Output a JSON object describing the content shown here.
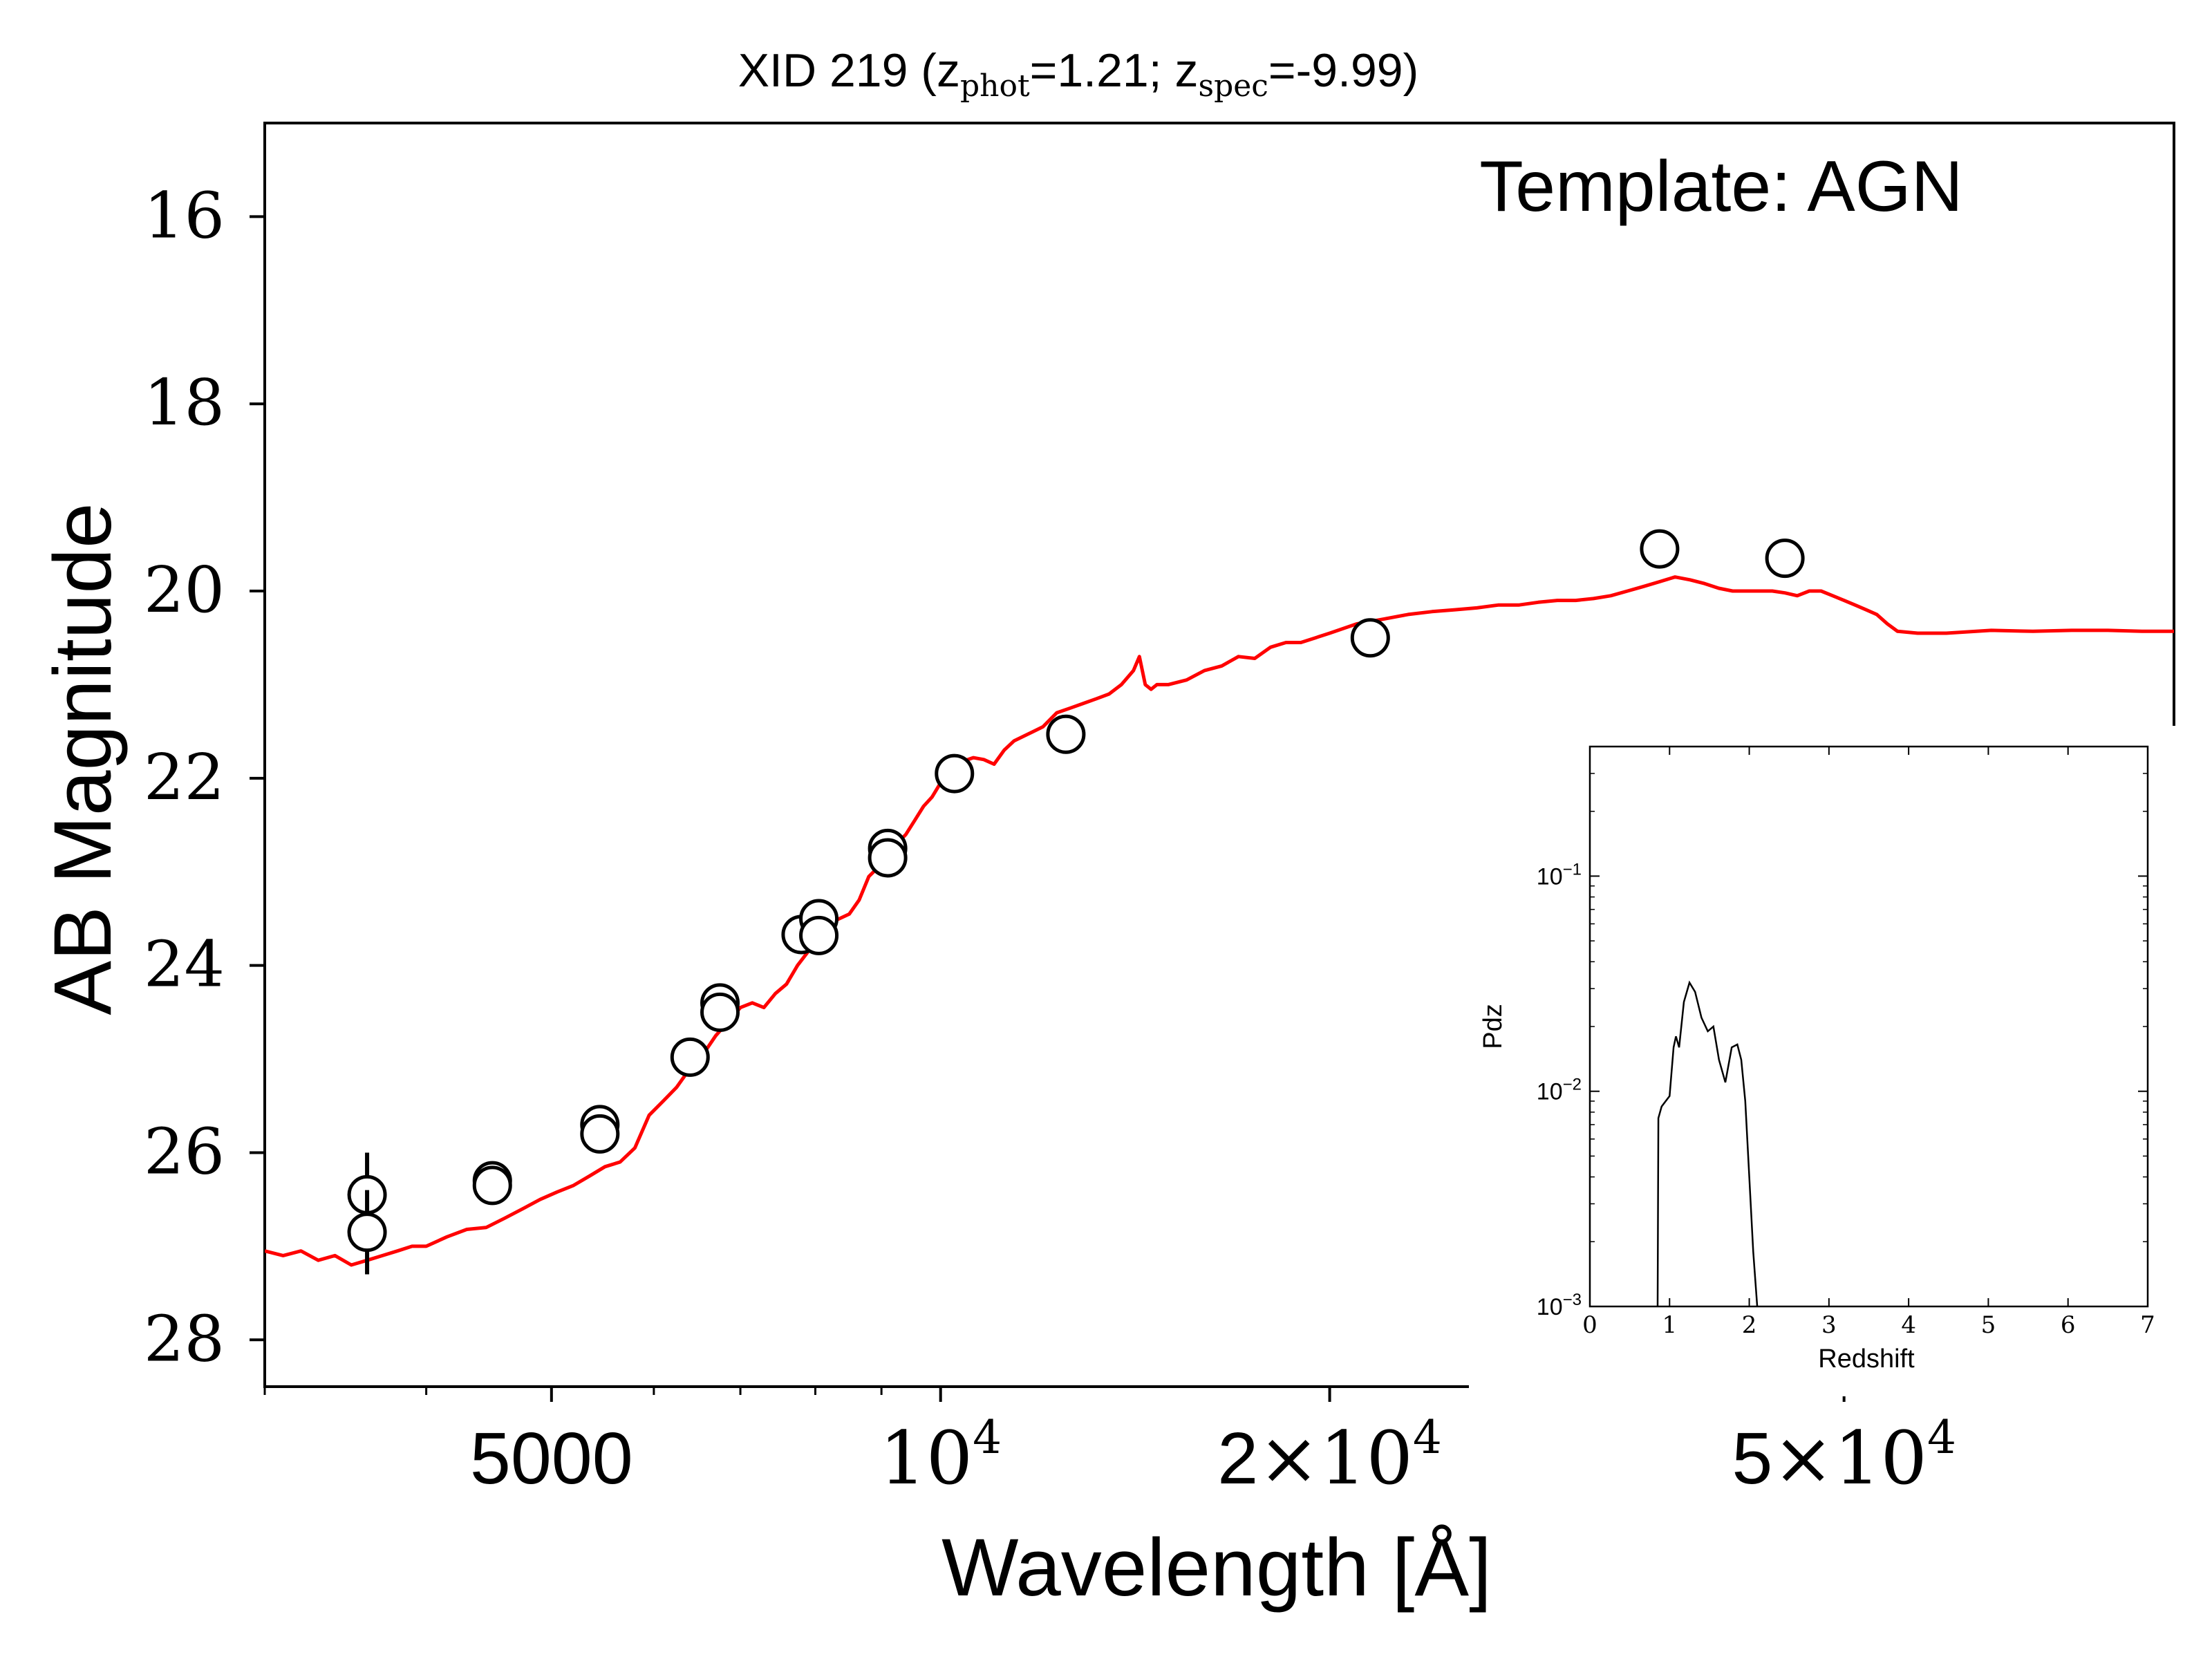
{
  "chart_data": {
    "type": "scatter",
    "title": {
      "prefix": "XID 219 (z",
      "sub1": "phot",
      "mid": "=1.21; z",
      "sub2": "spec",
      "suffix": "=-9.99)"
    },
    "annotation": "Template: AGN",
    "xlabel": "Wavelength [Å]",
    "ylabel": "AB Magnitude",
    "x_scale": "log",
    "xlim": [
      3000,
      90000
    ],
    "ylim": [
      28.5,
      15
    ],
    "y_inverted": true,
    "yticks": [
      16,
      18,
      20,
      22,
      24,
      26,
      28
    ],
    "xticks": [
      {
        "value": 5000,
        "label": "5000"
      },
      {
        "value": 10000,
        "base": "10",
        "exp": "4"
      },
      {
        "value": 20000,
        "coef": "2",
        "times": "×",
        "base": "10",
        "exp": "4"
      },
      {
        "value": 50000,
        "coef": "5",
        "times": "×",
        "base": "10",
        "exp": "4"
      }
    ],
    "series": [
      {
        "kind": "photometry",
        "marker": "open-circle",
        "color": "#000000",
        "points": [
          {
            "x": 3600,
            "y": 26.45,
            "yerr": 0.45
          },
          {
            "x": 3600,
            "y": 26.85,
            "yerr": 0.45
          },
          {
            "x": 4500,
            "y": 26.3,
            "yerr": 0.2
          },
          {
            "x": 4500,
            "y": 26.35,
            "yerr": 0.1
          },
          {
            "x": 5450,
            "y": 25.7,
            "yerr": 0.05
          },
          {
            "x": 5450,
            "y": 25.8,
            "yerr": 0.05
          },
          {
            "x": 6400,
            "y": 24.98,
            "yerr": 0.05
          },
          {
            "x": 6750,
            "y": 24.4,
            "yerr": 0.05
          },
          {
            "x": 6750,
            "y": 24.5,
            "yerr": 0.05
          },
          {
            "x": 7800,
            "y": 23.67,
            "yerr": 0.05
          },
          {
            "x": 8050,
            "y": 23.5,
            "yerr": 0.05
          },
          {
            "x": 8050,
            "y": 23.68,
            "yerr": 0.05
          },
          {
            "x": 9100,
            "y": 22.75,
            "yerr": 0.05
          },
          {
            "x": 9100,
            "y": 22.85,
            "yerr": 0.05
          },
          {
            "x": 10250,
            "y": 21.95,
            "yerr": 0.05
          },
          {
            "x": 12500,
            "y": 21.53,
            "yerr": 0.05
          },
          {
            "x": 21500,
            "y": 20.5,
            "yerr": 0.03
          },
          {
            "x": 36000,
            "y": 19.55,
            "yerr": 0.03
          },
          {
            "x": 45000,
            "y": 19.65,
            "yerr": 0.03
          }
        ]
      },
      {
        "kind": "template",
        "color": "#ff0000",
        "x": [
          3000,
          3100,
          3200,
          3300,
          3400,
          3500,
          3600,
          3700,
          3800,
          3900,
          4000,
          4150,
          4300,
          4450,
          4600,
          4750,
          4900,
          5050,
          5200,
          5350,
          5500,
          5650,
          5800,
          5950,
          6100,
          6250,
          6400,
          6550,
          6700,
          6850,
          7000,
          7150,
          7300,
          7450,
          7600,
          7750,
          7900,
          8050,
          8200,
          8350,
          8500,
          8650,
          8800,
          8950,
          9100,
          9250,
          9400,
          9550,
          9700,
          9850,
          10000,
          10200,
          10400,
          10600,
          10800,
          11000,
          11200,
          11400,
          11600,
          11800,
          12000,
          12300,
          12600,
          12900,
          13200,
          13500,
          13800,
          14100,
          14250,
          14400,
          14550,
          14700,
          15000,
          15500,
          16000,
          16500,
          17000,
          17500,
          18000,
          18500,
          19000,
          19500,
          20000,
          21000,
          22000,
          23000,
          24000,
          25000,
          26000,
          27000,
          28000,
          29000,
          30000,
          31000,
          32000,
          33000,
          34000,
          35000,
          36000,
          37000,
          38000,
          39000,
          40000,
          41000,
          42000,
          43000,
          44000,
          45000,
          46000,
          47000,
          48000,
          49000,
          50000,
          51000,
          52000,
          53000,
          54000,
          55000,
          57000,
          60000,
          65000,
          70000,
          75000,
          80000,
          85000,
          90000
        ],
        "y": [
          27.05,
          27.1,
          27.05,
          27.15,
          27.1,
          27.2,
          27.15,
          27.1,
          27.05,
          27.0,
          27.0,
          26.9,
          26.82,
          26.8,
          26.7,
          26.6,
          26.5,
          26.42,
          26.35,
          26.25,
          26.15,
          26.1,
          25.95,
          25.6,
          25.45,
          25.3,
          25.1,
          24.95,
          24.75,
          24.6,
          24.45,
          24.4,
          24.45,
          24.3,
          24.2,
          24.0,
          23.85,
          23.7,
          23.55,
          23.5,
          23.45,
          23.3,
          23.05,
          22.95,
          22.8,
          22.7,
          22.6,
          22.45,
          22.3,
          22.2,
          22.05,
          21.92,
          21.82,
          21.78,
          21.8,
          21.85,
          21.7,
          21.6,
          21.55,
          21.5,
          21.45,
          21.3,
          21.25,
          21.2,
          21.15,
          21.1,
          21.0,
          20.85,
          20.7,
          21.0,
          21.05,
          21.0,
          21.0,
          20.95,
          20.85,
          20.8,
          20.7,
          20.72,
          20.6,
          20.55,
          20.55,
          20.5,
          20.45,
          20.35,
          20.3,
          20.25,
          20.22,
          20.2,
          20.18,
          20.15,
          20.15,
          20.12,
          20.1,
          20.1,
          20.08,
          20.05,
          20.0,
          19.95,
          19.9,
          19.85,
          19.88,
          19.92,
          19.97,
          20.0,
          20.0,
          20.0,
          20.0,
          20.02,
          20.05,
          20.0,
          20.0,
          20.05,
          20.1,
          20.15,
          20.2,
          20.25,
          20.35,
          20.43,
          20.45,
          20.45,
          20.42,
          20.43,
          20.42,
          20.42,
          20.43,
          20.43
        ]
      }
    ],
    "inset": {
      "type": "line",
      "xlabel": "Redshift",
      "ylabel": "Pdz",
      "x_scale": "linear",
      "y_scale": "log",
      "xlim": [
        0,
        7
      ],
      "ylim": [
        0.001,
        0.4
      ],
      "xticks": [
        "0",
        "1",
        "2",
        "3",
        "4",
        "5",
        "6",
        "7"
      ],
      "yticks": [
        {
          "value": 0.1,
          "base": "10",
          "exp": "−1"
        },
        {
          "value": 0.01,
          "base": "10",
          "exp": "−2"
        },
        {
          "value": 0.001,
          "base": "10",
          "exp": "−3"
        }
      ],
      "x": [
        0.85,
        0.86,
        0.9,
        1.0,
        1.05,
        1.08,
        1.12,
        1.18,
        1.25,
        1.32,
        1.4,
        1.48,
        1.55,
        1.62,
        1.7,
        1.78,
        1.85,
        1.9,
        1.95,
        2.0,
        2.05,
        2.1
      ],
      "y": [
        0.001,
        0.0075,
        0.0085,
        0.0095,
        0.016,
        0.018,
        0.016,
        0.026,
        0.032,
        0.029,
        0.022,
        0.019,
        0.02,
        0.014,
        0.011,
        0.016,
        0.0165,
        0.014,
        0.009,
        0.004,
        0.0018,
        0.001
      ],
      "color": "#000000"
    }
  }
}
